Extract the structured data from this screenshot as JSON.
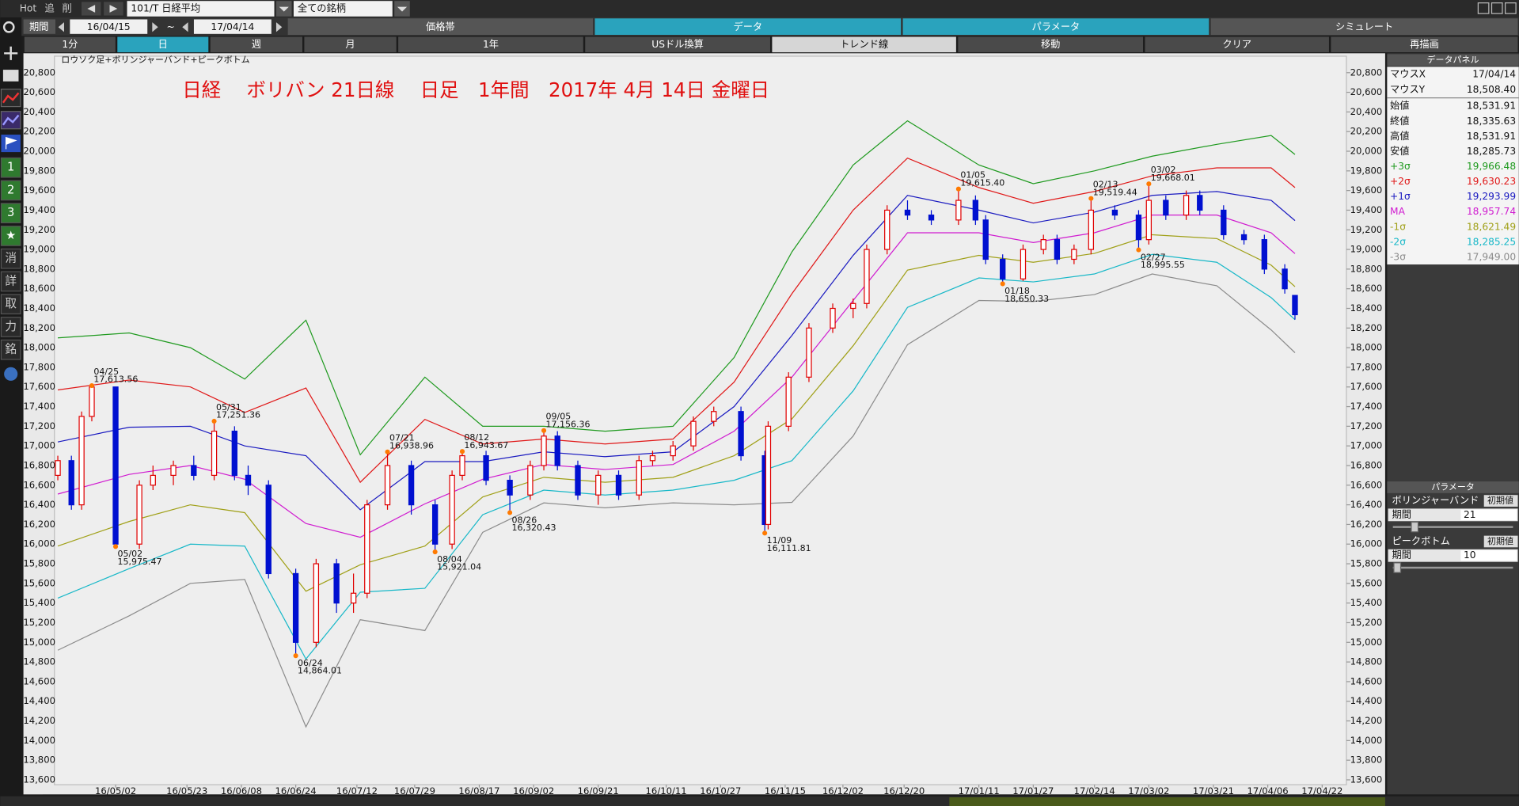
{
  "toolbar": {
    "hot": "Hot",
    "add": "追",
    "del": "削",
    "symbol": "101/T 日経平均",
    "universe": "全ての銘柄"
  },
  "period": {
    "label": "期間",
    "from": "16/04/15",
    "sep": "~",
    "to": "17/04/14"
  },
  "tabs": [
    "価格帯",
    "データ",
    "パラメータ",
    "シミュレート"
  ],
  "buttons": [
    "1分",
    "日",
    "週",
    "月",
    "1年",
    "USドル換算",
    "トレンド線",
    "移動",
    "クリア",
    "再描画"
  ],
  "side_buttons": [
    "1",
    "2",
    "3",
    "★",
    "消",
    "詳",
    "取",
    "力",
    "銘"
  ],
  "data_panel": {
    "title": "データパネル",
    "rows": [
      {
        "label": "マウスX",
        "value": "17/04/14"
      },
      {
        "label": "マウスY",
        "value": "18,508.40"
      },
      {
        "label": "始値",
        "value": "18,531.91"
      },
      {
        "label": "終値",
        "value": "18,335.63"
      },
      {
        "label": "高値",
        "value": "18,531.91"
      },
      {
        "label": "安値",
        "value": "18,285.73"
      }
    ]
  },
  "parameter_panel": {
    "title": "パラメータ",
    "sections": [
      {
        "name": "ボリンジャーバンド",
        "reset": "初期値",
        "field": "期間",
        "value": "21"
      },
      {
        "name": "ピークボトム",
        "reset": "初期値",
        "field": "期間",
        "value": "10"
      }
    ]
  },
  "chart_data": {
    "type": "candlestick",
    "title": "日経　 ボリバン 21日線　 日足　1年間　2017年 4月 14日 金曜日",
    "subtitle": "ロウソク足+ボリンジャーバンド+ピークボトム",
    "up_color": "#e00000",
    "down_color": "#0010d0",
    "xlim": [
      "16/04/14",
      "17/04/28"
    ],
    "xticks": [
      "16/05/02",
      "16/05/23",
      "16/06/08",
      "16/06/24",
      "16/07/12",
      "16/07/29",
      "16/08/17",
      "16/09/02",
      "16/09/21",
      "16/10/11",
      "16/10/27",
      "16/11/15",
      "16/12/02",
      "16/12/20",
      "17/01/11",
      "17/01/27",
      "17/02/14",
      "17/03/02",
      "17/03/21",
      "17/04/06",
      "17/04/22"
    ],
    "ylim": [
      13600,
      20800
    ],
    "yticks": [
      {
        "value": 13600,
        "label": "13,600"
      },
      {
        "value": 13800,
        "label": "13,800"
      },
      {
        "value": 14000,
        "label": "14,000"
      },
      {
        "value": 14200,
        "label": "14,200"
      },
      {
        "value": 14400,
        "label": "14,400"
      },
      {
        "value": 14600,
        "label": "14,600"
      },
      {
        "value": 14800,
        "label": "14,800"
      },
      {
        "value": 15000,
        "label": "15,000"
      },
      {
        "value": 15200,
        "label": "15,200"
      },
      {
        "value": 15400,
        "label": "15,400"
      },
      {
        "value": 15600,
        "label": "15,600"
      },
      {
        "value": 15800,
        "label": "15,800"
      },
      {
        "value": 16000,
        "label": "16,000"
      },
      {
        "value": 16200,
        "label": "16,200"
      },
      {
        "value": 16400,
        "label": "16,400"
      },
      {
        "value": 16600,
        "label": "16,600"
      },
      {
        "value": 16800,
        "label": "16,800"
      },
      {
        "value": 17000,
        "label": "17,000"
      },
      {
        "value": 17200,
        "label": "17,200"
      },
      {
        "value": 17400,
        "label": "17,400"
      },
      {
        "value": 17600,
        "label": "17,600"
      },
      {
        "value": 17800,
        "label": "17,800"
      },
      {
        "value": 18000,
        "label": "18,000"
      },
      {
        "value": 18200,
        "label": "18,200"
      },
      {
        "value": 18400,
        "label": "18,400"
      },
      {
        "value": 18600,
        "label": "18,600"
      },
      {
        "value": 18800,
        "label": "18,800"
      },
      {
        "value": 19000,
        "label": "19,000"
      },
      {
        "value": 19200,
        "label": "19,200"
      },
      {
        "value": 19400,
        "label": "19,400"
      },
      {
        "value": 19600,
        "label": "19,600"
      },
      {
        "value": 19800,
        "label": "19,800"
      },
      {
        "value": 20000,
        "label": "20,000"
      },
      {
        "value": 20200,
        "label": "20,200"
      },
      {
        "value": 20400,
        "label": "20,400"
      },
      {
        "value": 20600,
        "label": "20,600"
      },
      {
        "value": 20800,
        "label": "20,800"
      }
    ],
    "x": [
      "16/04/15",
      "16/04/19",
      "16/04/22",
      "16/04/25",
      "16/05/02",
      "16/05/09",
      "16/05/13",
      "16/05/19",
      "16/05/25",
      "16/05/31",
      "16/06/06",
      "16/06/10",
      "16/06/16",
      "16/06/24",
      "16/06/30",
      "16/07/06",
      "16/07/11",
      "16/07/15",
      "16/07/21",
      "16/07/28",
      "16/08/04",
      "16/08/09",
      "16/08/12",
      "16/08/19",
      "16/08/26",
      "16/09/01",
      "16/09/05",
      "16/09/09",
      "16/09/15",
      "16/09/21",
      "16/09/27",
      "16/10/03",
      "16/10/07",
      "16/10/13",
      "16/10/19",
      "16/10/25",
      "16/11/02",
      "16/11/09",
      "16/11/10",
      "16/11/16",
      "16/11/22",
      "16/11/29",
      "16/12/05",
      "16/12/09",
      "16/12/15",
      "16/12/21",
      "16/12/28",
      "17/01/05",
      "17/01/10",
      "17/01/13",
      "17/01/18",
      "17/01/24",
      "17/01/30",
      "17/02/03",
      "17/02/08",
      "17/02/13",
      "17/02/20",
      "17/02/27",
      "17/03/02",
      "17/03/07",
      "17/03/13",
      "17/03/17",
      "17/03/24",
      "17/03/30",
      "17/04/05",
      "17/04/11",
      "17/04/14"
    ],
    "open": [
      16700,
      16850,
      16400,
      17300,
      17600,
      16000,
      16600,
      16700,
      16800,
      16700,
      17150,
      16700,
      16600,
      15700,
      15000,
      15800,
      15400,
      15500,
      16400,
      16800,
      16400,
      16000,
      16700,
      16900,
      16650,
      16500,
      16800,
      17100,
      16800,
      16500,
      16700,
      16500,
      16850,
      16900,
      17000,
      17250,
      17350,
      16900,
      16200,
      17200,
      17700,
      18200,
      18400,
      18450,
      19000,
      19400,
      19350,
      19300,
      19500,
      19300,
      18900,
      18700,
      19000,
      19100,
      18900,
      19000,
      19400,
      19350,
      19100,
      19500,
      19350,
      19550,
      19400,
      19150,
      19100,
      18800,
      18531.91
    ],
    "high": [
      16900,
      16900,
      17350,
      17613.56,
      17600,
      16650,
      16800,
      16850,
      16900,
      17251.36,
      17200,
      16800,
      16650,
      15750,
      15850,
      15850,
      15700,
      16450,
      16938.96,
      16850,
      16450,
      16750,
      16943.67,
      16950,
      16700,
      16850,
      17156.36,
      17150,
      16850,
      16750,
      16750,
      16900,
      16950,
      17050,
      17300,
      17400,
      17400,
      16950,
      17250,
      17750,
      18250,
      18450,
      18500,
      19050,
      19450,
      19500,
      19400,
      19615.4,
      19550,
      19350,
      18950,
      19050,
      19150,
      19150,
      19050,
      19519.44,
      19450,
      19400,
      19668.01,
      19550,
      19600,
      19600,
      19450,
      19200,
      19150,
      18850,
      18531.91
    ],
    "low": [
      16650,
      16350,
      16350,
      17250,
      15975.47,
      15950,
      16550,
      16600,
      16650,
      16650,
      16650,
      16500,
      15650,
      14864.01,
      14950,
      15300,
      15300,
      15450,
      16350,
      16300,
      15921.04,
      15950,
      16650,
      16600,
      16320.43,
      16450,
      16750,
      16750,
      16450,
      16400,
      16450,
      16450,
      16800,
      16850,
      16950,
      17200,
      16850,
      16111.81,
      16150,
      17150,
      17650,
      18150,
      18300,
      18400,
      18950,
      19300,
      19250,
      19250,
      19250,
      18850,
      18650.33,
      18680,
      18950,
      18850,
      18850,
      18950,
      19300,
      18995.55,
      19050,
      19300,
      19300,
      19350,
      19100,
      19050,
      18750,
      18550,
      18285.73
    ],
    "close": [
      16850,
      16400,
      17300,
      17600,
      16000,
      16600,
      16700,
      16800,
      16700,
      17150,
      16700,
      16600,
      15700,
      15000,
      15800,
      15400,
      15500,
      16400,
      16800,
      16400,
      16000,
      16700,
      16900,
      16650,
      16500,
      16800,
      17100,
      16800,
      16500,
      16700,
      16500,
      16850,
      16900,
      17000,
      17250,
      17350,
      16900,
      16200,
      17200,
      17700,
      18200,
      18400,
      18450,
      19000,
      19400,
      19350,
      19300,
      19500,
      19300,
      18900,
      18700,
      19000,
      19100,
      18900,
      19000,
      19400,
      19350,
      19100,
      19500,
      19350,
      19550,
      19400,
      19150,
      19100,
      18800,
      18600,
      18335.63
    ],
    "bands": {
      "x": [
        "16/04/15",
        "16/05/06",
        "16/05/24",
        "16/06/09",
        "16/06/27",
        "16/07/13",
        "16/08/01",
        "16/08/18",
        "16/09/05",
        "16/09/23",
        "16/10/13",
        "16/10/31",
        "16/11/17",
        "16/12/05",
        "16/12/21",
        "17/01/11",
        "17/01/27",
        "17/02/14",
        "17/03/03",
        "17/03/22",
        "17/04/07",
        "17/04/14"
      ],
      "series": [
        {
          "name": "+3σ",
          "color": "#1f9a1f",
          "values": [
            18100,
            18150,
            18000,
            17680,
            18280,
            16910,
            17700,
            17200,
            17200,
            17150,
            17200,
            17900,
            18975,
            19860,
            20310,
            19860,
            19670,
            19800,
            19950,
            20070,
            20160,
            19966.48
          ],
          "value_labels": [
            null,
            null,
            null,
            null,
            null,
            null,
            null,
            null,
            null,
            null,
            null,
            null,
            null,
            null,
            null,
            null,
            null,
            null,
            null,
            null,
            null,
            "19,966.48"
          ]
        },
        {
          "name": "+2σ",
          "color": "#e01818",
          "values": [
            17570,
            17670,
            17600,
            17340,
            17590,
            16630,
            17270,
            17020,
            17070,
            17020,
            17070,
            17650,
            18550,
            19400,
            19930,
            19630,
            19470,
            19590,
            19750,
            19830,
            19830,
            19630.23
          ],
          "value_labels": [
            null,
            null,
            null,
            null,
            null,
            null,
            null,
            null,
            null,
            null,
            null,
            null,
            null,
            null,
            null,
            null,
            null,
            null,
            null,
            null,
            null,
            "19,630.23"
          ]
        },
        {
          "name": "+1σ",
          "color": "#1a1ac0",
          "values": [
            17040,
            17190,
            17200,
            17000,
            16900,
            16350,
            16840,
            16840,
            16940,
            16890,
            16940,
            17400,
            18125,
            18940,
            19550,
            19400,
            19270,
            19380,
            19550,
            19590,
            19500,
            19293.99
          ],
          "value_labels": [
            null,
            null,
            null,
            null,
            null,
            null,
            null,
            null,
            null,
            null,
            null,
            null,
            null,
            null,
            null,
            null,
            null,
            null,
            null,
            null,
            null,
            "19,293.99"
          ]
        },
        {
          "name": "MA",
          "color": "#d01cd0",
          "values": [
            16510,
            16710,
            16800,
            16660,
            16210,
            16070,
            16410,
            16660,
            16810,
            16760,
            16810,
            17150,
            17700,
            18480,
            19170,
            19170,
            19070,
            19170,
            19350,
            19350,
            19170,
            18957.74
          ],
          "value_labels": [
            null,
            null,
            null,
            null,
            null,
            null,
            null,
            null,
            null,
            null,
            null,
            null,
            null,
            null,
            null,
            null,
            null,
            null,
            null,
            null,
            null,
            "18,957.74"
          ]
        },
        {
          "name": "-1σ",
          "color": "#a0a018",
          "values": [
            15980,
            16230,
            16400,
            16320,
            15520,
            15790,
            15980,
            16480,
            16680,
            16630,
            16680,
            16900,
            17275,
            18020,
            18790,
            18940,
            18870,
            18960,
            19150,
            19110,
            18840,
            18621.49
          ],
          "value_labels": [
            null,
            null,
            null,
            null,
            null,
            null,
            null,
            null,
            null,
            null,
            null,
            null,
            null,
            null,
            null,
            null,
            null,
            null,
            null,
            null,
            null,
            "18,621.49"
          ]
        },
        {
          "name": "-2σ",
          "color": "#18b8c8",
          "values": [
            15450,
            15750,
            16000,
            15980,
            14830,
            15510,
            15550,
            16300,
            16550,
            16500,
            16550,
            16650,
            16850,
            17560,
            18410,
            18710,
            18670,
            18750,
            18950,
            18870,
            18510,
            18285.25
          ],
          "value_labels": [
            null,
            null,
            null,
            null,
            null,
            null,
            null,
            null,
            null,
            null,
            null,
            null,
            null,
            null,
            null,
            null,
            null,
            null,
            null,
            null,
            null,
            "18,285.25"
          ]
        },
        {
          "name": "-3σ",
          "color": "#8c8c8c",
          "values": [
            14920,
            15270,
            15600,
            15640,
            14140,
            15230,
            15120,
            16120,
            16420,
            16370,
            16420,
            16400,
            16425,
            17100,
            18030,
            18480,
            18470,
            18540,
            18750,
            18630,
            18180,
            17949
          ],
          "value_labels": [
            null,
            null,
            null,
            null,
            null,
            null,
            null,
            null,
            null,
            null,
            null,
            null,
            null,
            null,
            null,
            null,
            null,
            null,
            null,
            null,
            null,
            "17,949.00"
          ]
        }
      ]
    },
    "annotations": [
      {
        "x": "16/04/25",
        "value": 17613.56,
        "date": "04/25",
        "label": "17,613.56",
        "position": "above"
      },
      {
        "x": "16/05/02",
        "value": 15975.47,
        "date": "05/02",
        "label": "15,975.47",
        "position": "below"
      },
      {
        "x": "16/05/31",
        "value": 17251.36,
        "date": "05/31",
        "label": "17,251.36",
        "position": "above"
      },
      {
        "x": "16/06/24",
        "value": 14864.01,
        "date": "06/24",
        "label": "14,864.01",
        "position": "below"
      },
      {
        "x": "16/07/21",
        "value": 16938.96,
        "date": "07/21",
        "label": "16,938.96",
        "position": "above"
      },
      {
        "x": "16/08/04",
        "value": 15921.04,
        "date": "08/04",
        "label": "15,921.04",
        "position": "below"
      },
      {
        "x": "16/08/12",
        "value": 16943.67,
        "date": "08/12",
        "label": "16,943.67",
        "position": "above"
      },
      {
        "x": "16/08/26",
        "value": 16320.43,
        "date": "08/26",
        "label": "16,320.43",
        "position": "below"
      },
      {
        "x": "16/09/05",
        "value": 17156.36,
        "date": "09/05",
        "label": "17,156.36",
        "position": "above"
      },
      {
        "x": "16/11/09",
        "value": 16111.81,
        "date": "11/09",
        "label": "16,111.81",
        "position": "below"
      },
      {
        "x": "17/01/05",
        "value": 19615.4,
        "date": "01/05",
        "label": "19,615.40",
        "position": "above"
      },
      {
        "x": "17/01/18",
        "value": 18650.33,
        "date": "01/18",
        "label": "18,650.33",
        "position": "below"
      },
      {
        "x": "17/02/13",
        "value": 19519.44,
        "date": "02/13",
        "label": "19,519.44",
        "position": "above"
      },
      {
        "x": "17/02/27",
        "value": 18995.55,
        "date": "02/27",
        "label": "18,995.55",
        "position": "below"
      },
      {
        "x": "17/03/02",
        "value": 19668.01,
        "date": "03/02",
        "label": "19,668.01",
        "position": "above"
      }
    ]
  }
}
